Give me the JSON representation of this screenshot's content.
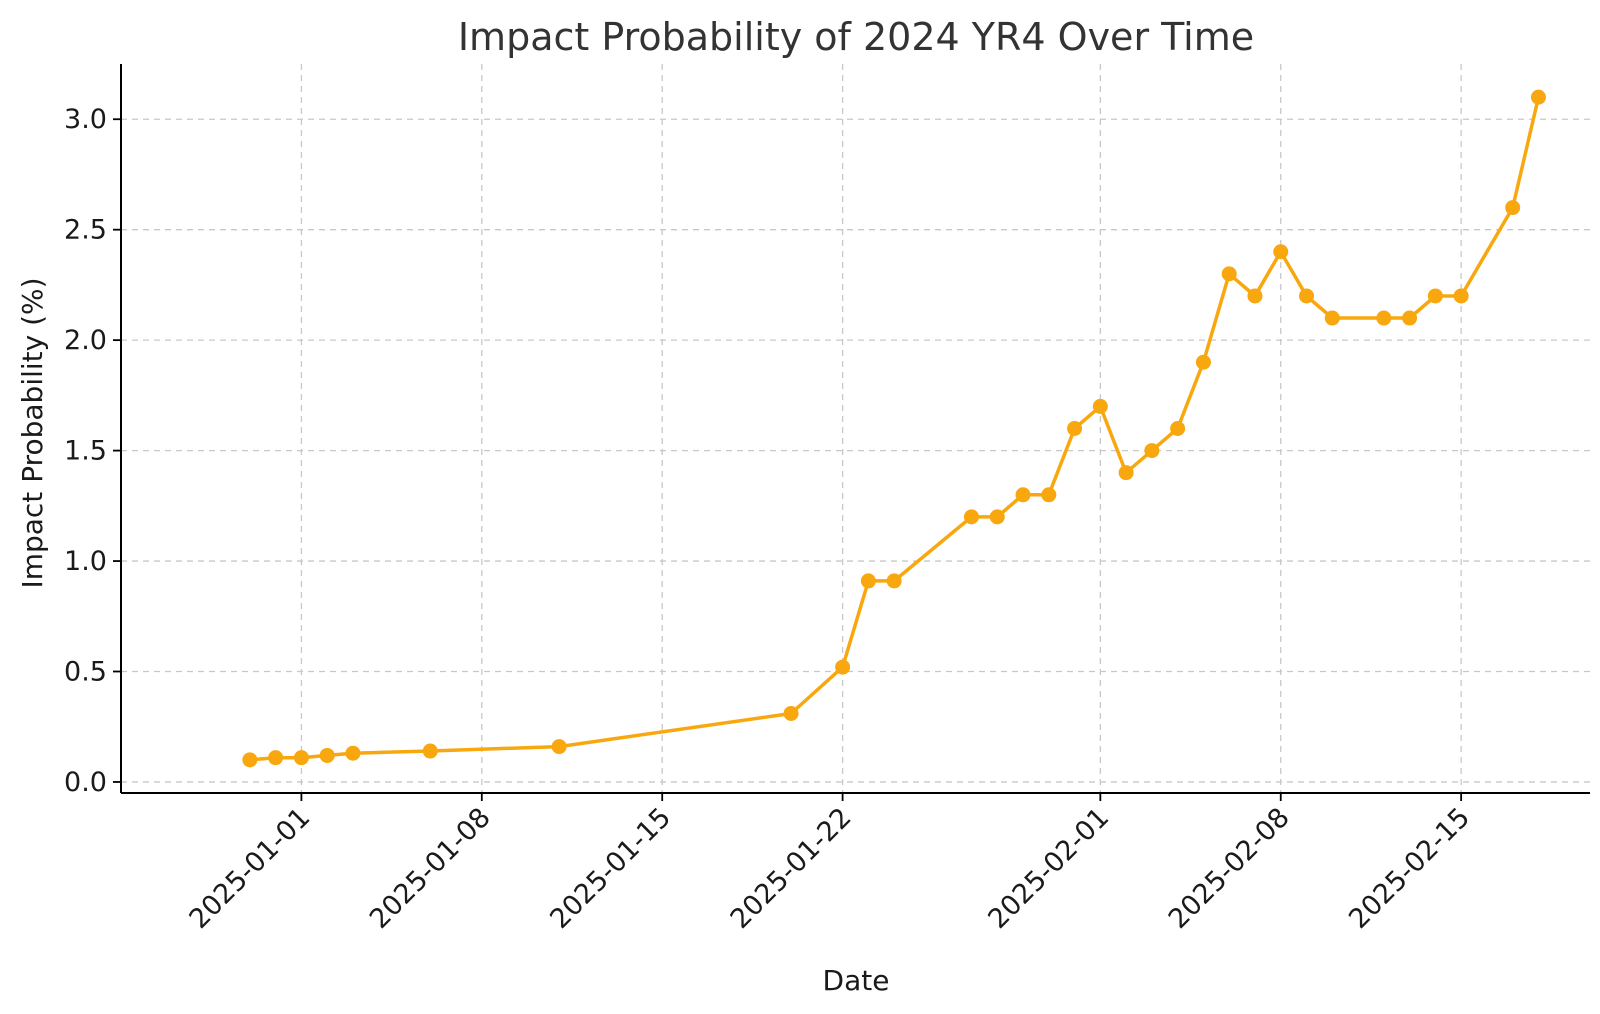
{
  "chart_data": {
    "type": "line",
    "title": "Impact Probability of 2024 YR4 Over Time",
    "xlabel": "Date",
    "ylabel": "Impact Probability (%)",
    "x_type": "date",
    "xlim": [
      "2024-12-25",
      "2025-02-20"
    ],
    "ylim": [
      -0.05,
      3.25
    ],
    "yticks": [
      0.0,
      0.5,
      1.0,
      1.5,
      2.0,
      2.5,
      3.0
    ],
    "ytick_labels": [
      "0.0",
      "0.5",
      "1.0",
      "1.5",
      "2.0",
      "2.5",
      "3.0"
    ],
    "xticks": [
      "2025-01-01",
      "2025-01-08",
      "2025-01-15",
      "2025-01-22",
      "2025-02-01",
      "2025-02-08",
      "2025-02-15"
    ],
    "grid": true,
    "color": "#F9A70E",
    "series": [
      {
        "x": [
          "2024-12-30",
          "2024-12-31",
          "2025-01-01",
          "2025-01-02",
          "2025-01-03",
          "2025-01-06",
          "2025-01-11",
          "2025-01-20",
          "2025-01-22",
          "2025-01-23",
          "2025-01-24",
          "2025-01-27",
          "2025-01-28",
          "2025-01-29",
          "2025-01-30",
          "2025-01-31",
          "2025-02-01",
          "2025-02-02",
          "2025-02-03",
          "2025-02-04",
          "2025-02-05",
          "2025-02-06",
          "2025-02-07",
          "2025-02-08",
          "2025-02-09",
          "2025-02-10",
          "2025-02-12",
          "2025-02-13",
          "2025-02-14",
          "2025-02-15",
          "2025-02-17",
          "2025-02-18"
        ],
        "values": [
          0.1,
          0.11,
          0.11,
          0.12,
          0.13,
          0.14,
          0.16,
          0.31,
          0.52,
          0.91,
          0.91,
          1.2,
          1.2,
          1.3,
          1.3,
          1.6,
          1.7,
          1.4,
          1.5,
          1.6,
          1.9,
          2.3,
          2.2,
          2.4,
          2.2,
          2.1,
          2.1,
          2.1,
          2.2,
          2.2,
          2.6,
          3.1
        ]
      }
    ]
  }
}
